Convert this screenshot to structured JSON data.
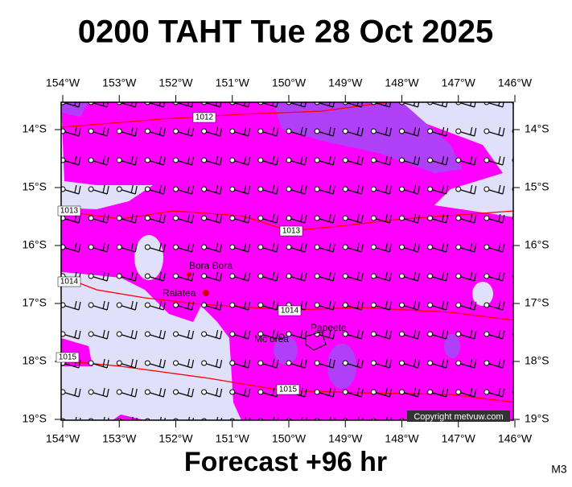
{
  "title": "0200 TAHT Tue 28 Oct 2025",
  "footer": "Forecast +96 hr",
  "code": "M3",
  "copyright": "Copyright metvuw.com",
  "lon_labels": [
    "154°W",
    "153°W",
    "152°W",
    "151°W",
    "150°W",
    "149°W",
    "148°W",
    "147°W",
    "146°W"
  ],
  "lat_labels": [
    "14°S",
    "15°S",
    "16°S",
    "17°S",
    "18°S",
    "19°S"
  ],
  "isobar_labels": [
    "1012",
    "1013",
    "1013",
    "1014",
    "1014",
    "1015",
    "1015"
  ],
  "places": [
    "Bora Bora",
    "Raiatea",
    "Mo'orea",
    "Papeete"
  ]
}
